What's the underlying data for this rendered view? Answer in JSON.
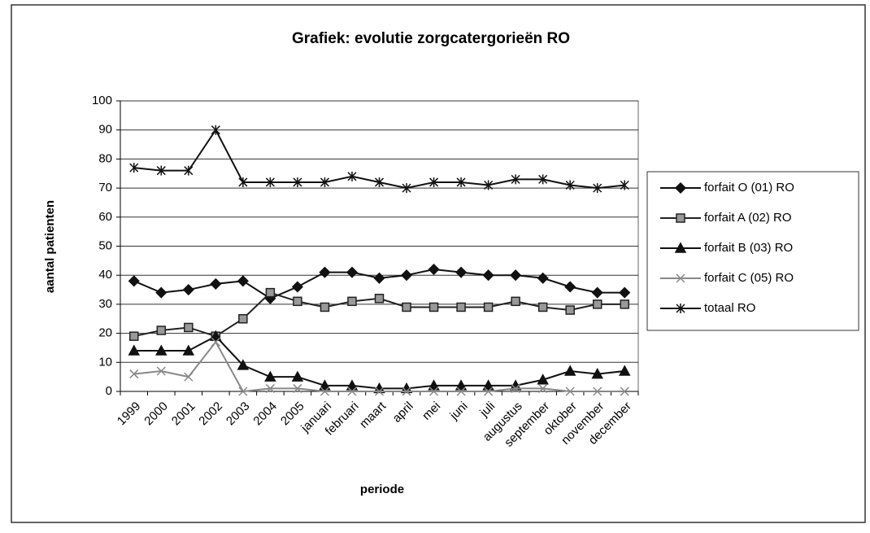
{
  "chart_data": {
    "type": "line",
    "title": "Grafiek: evolutie zorgcatergorieën RO",
    "x_label": "periode",
    "y_label": "aantal patienten",
    "categories": [
      "1999",
      "2000",
      "2001",
      "2002",
      "2003",
      "2004",
      "2005",
      "januari",
      "februari",
      "maart",
      "april",
      "mei",
      "juni",
      "juli",
      "augustus",
      "september",
      "oktober",
      "november",
      "december"
    ],
    "series": [
      {
        "name": "forfait O (01) RO",
        "color": "#111111",
        "marker": "diamond",
        "values": [
          38,
          34,
          35,
          37,
          38,
          32,
          36,
          41,
          41,
          39,
          40,
          42,
          41,
          40,
          40,
          39,
          36,
          34,
          34
        ]
      },
      {
        "name": "forfait A (02) RO",
        "color": "#222222",
        "marker": "square",
        "values": [
          19,
          21,
          22,
          19,
          25,
          34,
          31,
          29,
          31,
          32,
          29,
          29,
          29,
          29,
          31,
          29,
          28,
          30,
          30
        ]
      },
      {
        "name": "forfait B (03) RO",
        "color": "#111111",
        "marker": "triangle",
        "values": [
          14,
          14,
          14,
          19,
          9,
          5,
          5,
          2,
          2,
          1,
          1,
          2,
          2,
          2,
          2,
          4,
          7,
          6,
          7
        ]
      },
      {
        "name": "forfait C (05) RO",
        "color": "#888888",
        "marker": "x",
        "values": [
          6,
          7,
          5,
          17,
          0,
          1,
          1,
          0,
          0,
          0,
          0,
          0,
          0,
          0,
          1,
          1,
          0,
          0,
          0
        ]
      },
      {
        "name": "totaal RO",
        "color": "#111111",
        "marker": "star",
        "values": [
          77,
          76,
          76,
          90,
          72,
          72,
          72,
          72,
          74,
          72,
          70,
          72,
          72,
          71,
          73,
          73,
          71,
          70,
          71
        ]
      }
    ],
    "ylim": [
      0,
      100
    ],
    "yticks": [
      0,
      10,
      20,
      30,
      40,
      50,
      60,
      70,
      80,
      90,
      100
    ],
    "grid": true,
    "legend": "right"
  }
}
